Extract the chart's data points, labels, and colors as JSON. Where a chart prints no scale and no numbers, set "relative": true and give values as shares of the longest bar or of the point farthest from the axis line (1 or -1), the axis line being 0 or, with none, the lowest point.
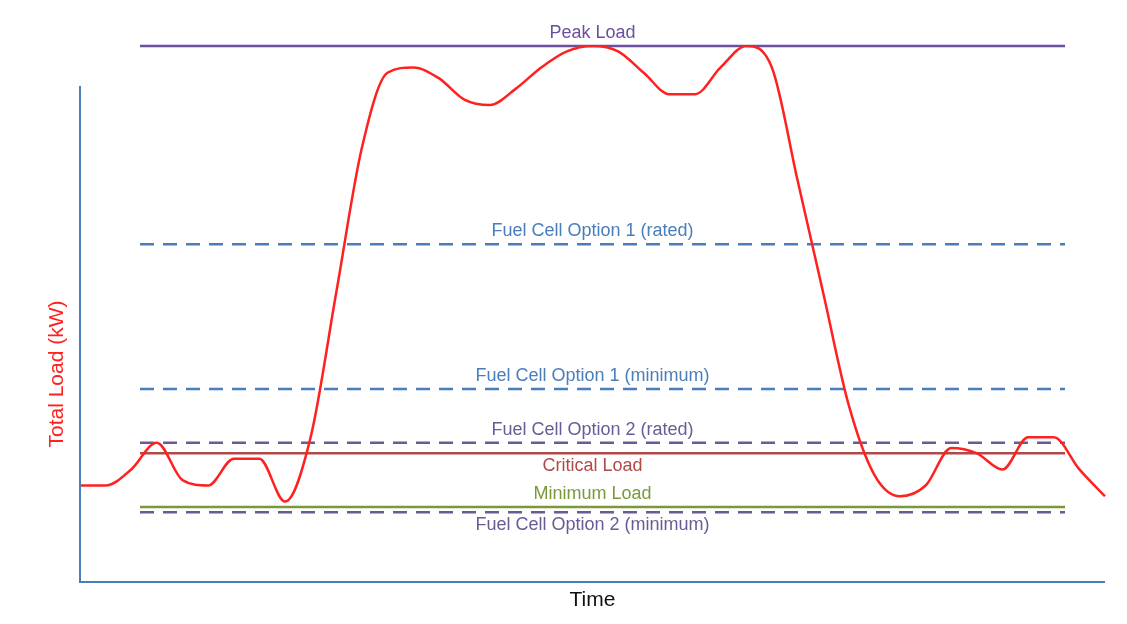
{
  "chart_data": {
    "type": "line",
    "relative": true,
    "xlabel": "Time",
    "ylabel": "Total Load (kW)",
    "legend": false,
    "marker": "none",
    "categories": [
      null,
      null,
      null,
      null,
      null,
      null,
      null,
      null,
      null,
      null,
      null,
      null,
      null,
      null,
      null,
      null,
      null,
      null,
      null,
      null,
      null,
      null,
      null,
      null,
      null,
      null,
      null,
      null,
      null,
      null,
      null,
      null,
      null,
      null,
      null,
      null,
      null,
      null,
      null,
      null,
      null
    ],
    "series": [
      {
        "color": "#ff2020",
        "values": [
          0.18,
          0.18,
          0.21,
          0.26,
          0.19,
          0.18,
          0.23,
          0.23,
          0.15,
          0.27,
          0.54,
          0.81,
          0.95,
          0.96,
          0.94,
          0.9,
          0.89,
          0.92,
          0.96,
          0.99,
          1.0,
          0.99,
          0.95,
          0.91,
          0.91,
          0.96,
          1.0,
          0.96,
          0.75,
          0.54,
          0.33,
          0.2,
          0.16,
          0.18,
          0.25,
          0.24,
          0.21,
          0.27,
          0.27,
          0.21,
          0.16
        ]
      }
    ],
    "ref_lines": [
      {
        "axis": "y",
        "value": 1.0,
        "label": "Peak Load",
        "color": "#6b4fa0",
        "line_style": "solid"
      },
      {
        "axis": "y",
        "value": 0.63,
        "label": "Fuel Cell Option 1 (rated)",
        "color": "#4a7ebb",
        "line_style": "dashed"
      },
      {
        "axis": "y",
        "value": 0.36,
        "label": "Fuel Cell Option 1 (minimum)",
        "color": "#4a7ebb",
        "line_style": "dashed"
      },
      {
        "axis": "y",
        "value": 0.26,
        "label": "Fuel Cell Option 2 (rated)",
        "color": "#6b5b95",
        "line_style": "dashed"
      },
      {
        "axis": "y",
        "value": 0.24,
        "label": "Critical Load",
        "color": "#b04a48",
        "line_style": "solid"
      },
      {
        "axis": "y",
        "value": 0.14,
        "label": "Minimum Load",
        "color": "#7a9a3a",
        "line_style": "solid"
      },
      {
        "axis": "y",
        "value": 0.13,
        "label": "Fuel Cell Option 2 (minimum)",
        "color": "#6b5b95",
        "line_style": "dashed"
      }
    ]
  }
}
